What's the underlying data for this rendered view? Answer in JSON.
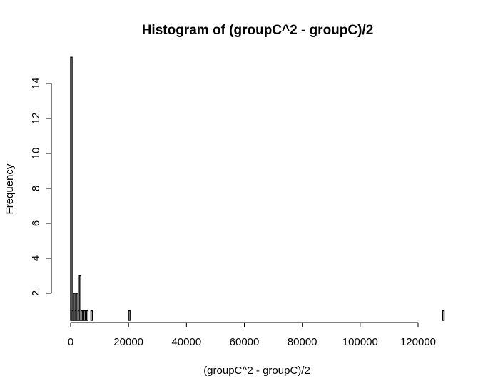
{
  "chart_data": {
    "type": "bar",
    "title": "Histogram of (groupC^2 - groupC)/2",
    "xlabel": "(groupC^2 - groupC)/2",
    "ylabel": "Frequency",
    "xlim": [
      0,
      129000
    ],
    "ylim": [
      0.5,
      15.5
    ],
    "xticks": [
      0,
      20000,
      40000,
      60000,
      80000,
      100000,
      120000
    ],
    "yticks": [
      2,
      4,
      6,
      8,
      10,
      12,
      14
    ],
    "bin_width": 500,
    "bins": [
      {
        "start": 0,
        "count": 15.5
      },
      {
        "start": 500,
        "count": 1
      },
      {
        "start": 1000,
        "count": 2
      },
      {
        "start": 1500,
        "count": 1
      },
      {
        "start": 2000,
        "count": 2
      },
      {
        "start": 2500,
        "count": 1
      },
      {
        "start": 3000,
        "count": 3
      },
      {
        "start": 3500,
        "count": 1
      },
      {
        "start": 4000,
        "count": 1
      },
      {
        "start": 4500,
        "count": 1
      },
      {
        "start": 5000,
        "count": 1
      },
      {
        "start": 5500,
        "count": 1
      },
      {
        "start": 7000,
        "count": 1
      },
      {
        "start": 20000,
        "count": 1
      },
      {
        "start": 128500,
        "count": 1
      }
    ],
    "grid": false
  }
}
